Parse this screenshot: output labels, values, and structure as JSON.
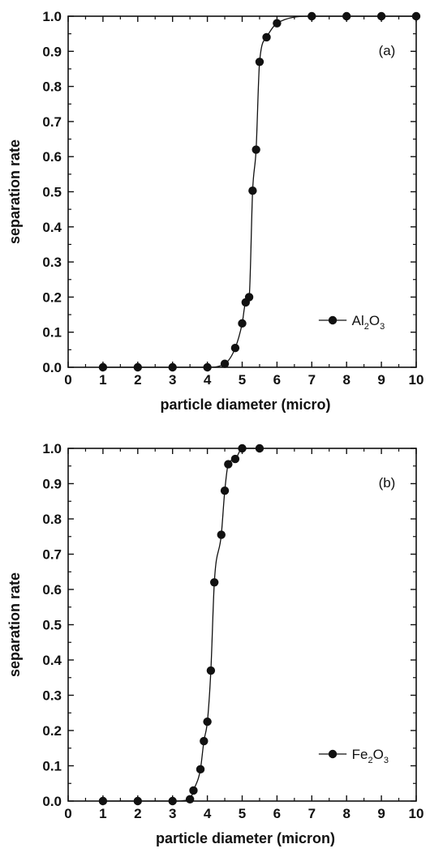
{
  "chart_data": [
    {
      "type": "line",
      "panel_label": "(a)",
      "xlabel": "particle diameter (micro)",
      "ylabel": "separation rate",
      "xlim": [
        0,
        10
      ],
      "ylim": [
        0.0,
        1.0
      ],
      "x_ticks": [
        "0",
        "1",
        "2",
        "3",
        "4",
        "5",
        "6",
        "7",
        "8",
        "9",
        "10"
      ],
      "y_ticks": [
        "0.0",
        "0.1",
        "0.2",
        "0.3",
        "0.4",
        "0.5",
        "0.6",
        "0.7",
        "0.8",
        "0.9",
        "1.0"
      ],
      "legend": {
        "placement": "bottom-right",
        "base1": "Al",
        "sub1": "2",
        "base2": "O",
        "sub2": "3"
      },
      "grid": false,
      "series": [
        {
          "marker": "filled-circle",
          "points": [
            [
              1,
              0.0
            ],
            [
              2,
              0.0
            ],
            [
              3,
              0.0
            ],
            [
              4,
              0.0
            ],
            [
              4.5,
              0.01
            ],
            [
              4.8,
              0.055
            ],
            [
              5.0,
              0.125
            ],
            [
              5.1,
              0.185
            ],
            [
              5.2,
              0.2
            ],
            [
              5.3,
              0.503
            ],
            [
              5.4,
              0.62
            ],
            [
              5.5,
              0.87
            ],
            [
              5.7,
              0.94
            ],
            [
              6.0,
              0.98
            ],
            [
              7,
              1.0
            ],
            [
              8,
              1.0
            ],
            [
              9,
              1.0
            ],
            [
              10,
              1.0
            ]
          ]
        }
      ]
    },
    {
      "type": "line",
      "panel_label": "(b)",
      "xlabel": "particle diameter (micron)",
      "ylabel": "separation rate",
      "xlim": [
        0,
        10
      ],
      "ylim": [
        0.0,
        1.0
      ],
      "x_ticks": [
        "0",
        "1",
        "2",
        "3",
        "4",
        "5",
        "6",
        "7",
        "8",
        "9",
        "10"
      ],
      "y_ticks": [
        "0.0",
        "0.1",
        "0.2",
        "0.3",
        "0.4",
        "0.5",
        "0.6",
        "0.7",
        "0.8",
        "0.9",
        "1.0"
      ],
      "legend": {
        "placement": "bottom-right",
        "base1": "Fe",
        "sub1": "2",
        "base2": "O",
        "sub2": "3"
      },
      "grid": false,
      "series": [
        {
          "marker": "filled-circle",
          "points": [
            [
              1,
              0.0
            ],
            [
              2,
              0.0
            ],
            [
              3,
              0.0
            ],
            [
              3.5,
              0.005
            ],
            [
              3.6,
              0.03
            ],
            [
              3.8,
              0.09
            ],
            [
              3.9,
              0.17
            ],
            [
              4.0,
              0.225
            ],
            [
              4.1,
              0.37
            ],
            [
              4.2,
              0.62
            ],
            [
              4.4,
              0.755
            ],
            [
              4.5,
              0.88
            ],
            [
              4.6,
              0.955
            ],
            [
              4.8,
              0.97
            ],
            [
              5.0,
              1.0
            ],
            [
              5.5,
              1.0
            ]
          ]
        }
      ]
    }
  ]
}
